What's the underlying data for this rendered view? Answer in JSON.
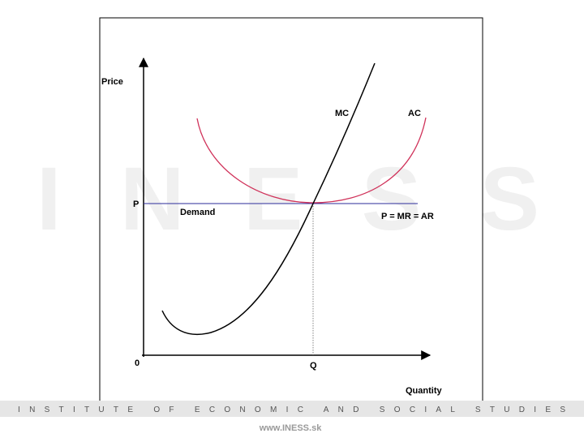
{
  "watermark": "INESS",
  "axes": {
    "y_label": "Price",
    "x_label": "Quantity",
    "origin": "0",
    "price": "P",
    "quantity": "Q"
  },
  "curves": {
    "mc": "MC",
    "ac": "AC",
    "demand": "Demand",
    "demand_equation": "P = MR = AR"
  },
  "footer": {
    "institute": "INSTITUTE OF ECONOMIC AND SOCIAL STUDIES",
    "url": "www.INESS.sk"
  }
}
